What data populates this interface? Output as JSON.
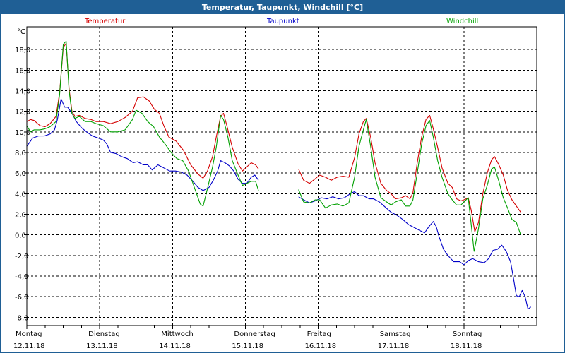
{
  "window": {
    "title": "Temperatur, Taupunkt, Windchill [°C]"
  },
  "chart_data": {
    "type": "line",
    "title": "Temperatur, Taupunkt, Windchill [°C]",
    "ylabel": "°C",
    "ylim": [
      -8.8,
      20.2
    ],
    "yticks": [
      "18,0",
      "16,0",
      "14,0",
      "12,0",
      "10,0",
      "8,0",
      "6,0",
      "4,0",
      "2,0",
      "0,0",
      "-2,0",
      "-4,0",
      "-6,0",
      "-8,0"
    ],
    "ytick_values": [
      18,
      16,
      14,
      12,
      10,
      8,
      6,
      4,
      2,
      0,
      -2,
      -4,
      -6,
      -8
    ],
    "xlim": [
      0,
      7.0
    ],
    "x_unit": "days since Montag 12.11.18 00:00",
    "x_day_labels": [
      {
        "day": "Montag",
        "date": "12.11.18"
      },
      {
        "day": "Dienstag",
        "date": "13.11.18"
      },
      {
        "day": "Mittwoch",
        "date": "14.11.18"
      },
      {
        "day": "Donnerstag",
        "date": "15.11.18"
      },
      {
        "day": "Freitag",
        "date": "16.11.18"
      },
      {
        "day": "Samstag",
        "date": "17.11.18"
      },
      {
        "day": "Sonntag",
        "date": "18.11.18"
      }
    ],
    "grid": true,
    "legend_placement": "top",
    "series": [
      {
        "name": "Temperatur",
        "color": "#d40000",
        "points": [
          [
            0.0,
            11.0
          ],
          [
            0.05,
            11.2
          ],
          [
            0.1,
            11.1
          ],
          [
            0.18,
            10.6
          ],
          [
            0.25,
            10.5
          ],
          [
            0.32,
            10.8
          ],
          [
            0.4,
            11.5
          ],
          [
            0.45,
            13.8
          ],
          [
            0.5,
            18.2
          ],
          [
            0.54,
            18.6
          ],
          [
            0.58,
            14.2
          ],
          [
            0.62,
            12.0
          ],
          [
            0.66,
            11.5
          ],
          [
            0.72,
            11.6
          ],
          [
            0.8,
            11.3
          ],
          [
            0.88,
            11.2
          ],
          [
            0.95,
            11.0
          ],
          [
            1.05,
            11.0
          ],
          [
            1.15,
            10.8
          ],
          [
            1.25,
            11.0
          ],
          [
            1.35,
            11.4
          ],
          [
            1.45,
            12.0
          ],
          [
            1.52,
            13.3
          ],
          [
            1.6,
            13.4
          ],
          [
            1.68,
            13.0
          ],
          [
            1.75,
            12.2
          ],
          [
            1.82,
            11.8
          ],
          [
            1.88,
            10.6
          ],
          [
            1.95,
            9.5
          ],
          [
            2.05,
            9.1
          ],
          [
            2.15,
            8.2
          ],
          [
            2.25,
            6.8
          ],
          [
            2.35,
            5.9
          ],
          [
            2.42,
            5.5
          ],
          [
            2.48,
            6.2
          ],
          [
            2.55,
            7.6
          ],
          [
            2.6,
            9.5
          ],
          [
            2.66,
            11.5
          ],
          [
            2.7,
            11.8
          ],
          [
            2.75,
            10.5
          ],
          [
            2.82,
            8.5
          ],
          [
            2.9,
            6.9
          ],
          [
            2.96,
            6.2
          ],
          [
            3.02,
            6.6
          ],
          [
            3.08,
            7.0
          ],
          [
            3.14,
            6.8
          ],
          [
            3.18,
            6.4
          ],
          null,
          [
            3.73,
            6.4
          ],
          [
            3.8,
            5.3
          ],
          [
            3.88,
            5.0
          ],
          [
            3.95,
            5.4
          ],
          [
            4.02,
            5.8
          ],
          [
            4.1,
            5.6
          ],
          [
            4.18,
            5.3
          ],
          [
            4.26,
            5.6
          ],
          [
            4.34,
            5.7
          ],
          [
            4.42,
            5.6
          ],
          [
            4.5,
            7.5
          ],
          [
            4.56,
            9.8
          ],
          [
            4.62,
            11.0
          ],
          [
            4.66,
            11.3
          ],
          [
            4.72,
            9.5
          ],
          [
            4.78,
            7.0
          ],
          [
            4.86,
            5.0
          ],
          [
            4.94,
            4.3
          ],
          [
            5.0,
            4.0
          ],
          [
            5.06,
            3.5
          ],
          [
            5.14,
            3.6
          ],
          [
            5.2,
            3.8
          ],
          [
            5.26,
            3.5
          ],
          [
            5.3,
            4.1
          ],
          [
            5.36,
            7.0
          ],
          [
            5.42,
            9.5
          ],
          [
            5.48,
            11.2
          ],
          [
            5.53,
            11.6
          ],
          [
            5.58,
            10.3
          ],
          [
            5.64,
            8.5
          ],
          [
            5.7,
            6.5
          ],
          [
            5.78,
            5.0
          ],
          [
            5.84,
            4.6
          ],
          [
            5.9,
            3.5
          ],
          [
            5.96,
            3.3
          ],
          [
            6.0,
            3.4
          ],
          [
            6.06,
            3.6
          ],
          [
            6.1,
            2.4
          ],
          [
            6.15,
            0.3
          ],
          [
            6.2,
            1.2
          ],
          [
            6.26,
            4.0
          ],
          [
            6.32,
            6.0
          ],
          [
            6.38,
            7.3
          ],
          [
            6.42,
            7.6
          ],
          [
            6.48,
            6.8
          ],
          [
            6.54,
            5.8
          ],
          [
            6.6,
            4.3
          ],
          [
            6.66,
            3.4
          ],
          [
            6.72,
            2.8
          ],
          [
            6.78,
            2.2
          ]
        ]
      },
      {
        "name": "Taupunkt",
        "color": "#0000c8",
        "points": [
          [
            0.0,
            8.6
          ],
          [
            0.08,
            9.4
          ],
          [
            0.16,
            9.6
          ],
          [
            0.24,
            9.6
          ],
          [
            0.32,
            9.8
          ],
          [
            0.38,
            10.2
          ],
          [
            0.42,
            11.2
          ],
          [
            0.47,
            13.2
          ],
          [
            0.52,
            12.4
          ],
          [
            0.56,
            12.4
          ],
          [
            0.62,
            11.8
          ],
          [
            0.68,
            11.0
          ],
          [
            0.75,
            10.4
          ],
          [
            0.82,
            10.0
          ],
          [
            0.9,
            9.6
          ],
          [
            0.98,
            9.4
          ],
          [
            1.05,
            9.2
          ],
          [
            1.1,
            8.8
          ],
          [
            1.15,
            8.0
          ],
          [
            1.22,
            7.9
          ],
          [
            1.3,
            7.6
          ],
          [
            1.38,
            7.4
          ],
          [
            1.46,
            7.0
          ],
          [
            1.52,
            7.1
          ],
          [
            1.6,
            6.8
          ],
          [
            1.66,
            6.8
          ],
          [
            1.72,
            6.3
          ],
          [
            1.8,
            6.8
          ],
          [
            1.88,
            6.5
          ],
          [
            1.96,
            6.2
          ],
          [
            2.04,
            6.2
          ],
          [
            2.12,
            6.1
          ],
          [
            2.2,
            5.8
          ],
          [
            2.28,
            5.2
          ],
          [
            2.35,
            4.6
          ],
          [
            2.42,
            4.3
          ],
          [
            2.5,
            4.6
          ],
          [
            2.56,
            5.3
          ],
          [
            2.62,
            6.2
          ],
          [
            2.66,
            7.2
          ],
          [
            2.72,
            7.0
          ],
          [
            2.78,
            6.7
          ],
          [
            2.84,
            6.2
          ],
          [
            2.9,
            5.4
          ],
          [
            2.96,
            5.0
          ],
          [
            3.02,
            5.0
          ],
          [
            3.08,
            5.6
          ],
          [
            3.13,
            5.8
          ],
          [
            3.18,
            5.3
          ],
          null,
          [
            3.73,
            3.7
          ],
          [
            3.8,
            3.4
          ],
          [
            3.88,
            3.1
          ],
          [
            3.96,
            3.3
          ],
          [
            4.04,
            3.6
          ],
          [
            4.12,
            3.5
          ],
          [
            4.2,
            3.7
          ],
          [
            4.28,
            3.5
          ],
          [
            4.36,
            3.6
          ],
          [
            4.44,
            4.0
          ],
          [
            4.5,
            4.2
          ],
          [
            4.56,
            3.8
          ],
          [
            4.62,
            3.8
          ],
          [
            4.7,
            3.5
          ],
          [
            4.76,
            3.5
          ],
          [
            4.84,
            3.2
          ],
          [
            4.92,
            2.7
          ],
          [
            5.0,
            2.2
          ],
          [
            5.08,
            1.9
          ],
          [
            5.16,
            1.5
          ],
          [
            5.24,
            1.0
          ],
          [
            5.32,
            0.7
          ],
          [
            5.4,
            0.4
          ],
          [
            5.46,
            0.2
          ],
          [
            5.52,
            0.8
          ],
          [
            5.58,
            1.3
          ],
          [
            5.62,
            0.8
          ],
          [
            5.66,
            -0.2
          ],
          [
            5.72,
            -1.4
          ],
          [
            5.78,
            -2.0
          ],
          [
            5.86,
            -2.6
          ],
          [
            5.94,
            -2.6
          ],
          [
            6.0,
            -2.9
          ],
          [
            6.06,
            -2.5
          ],
          [
            6.12,
            -2.3
          ],
          [
            6.2,
            -2.6
          ],
          [
            6.28,
            -2.7
          ],
          [
            6.34,
            -2.3
          ],
          [
            6.4,
            -1.5
          ],
          [
            6.46,
            -1.4
          ],
          [
            6.52,
            -1.0
          ],
          [
            6.58,
            -1.6
          ],
          [
            6.64,
            -2.6
          ],
          [
            6.68,
            -4.2
          ],
          [
            6.72,
            -5.9
          ],
          [
            6.76,
            -6.0
          ],
          [
            6.8,
            -5.4
          ],
          [
            6.84,
            -6.0
          ],
          [
            6.88,
            -7.2
          ],
          [
            6.92,
            -7.0
          ]
        ]
      },
      {
        "name": "Windchill",
        "color": "#00a000",
        "points": [
          [
            0.0,
            10.6
          ],
          [
            0.05,
            10.0
          ],
          [
            0.1,
            10.2
          ],
          [
            0.18,
            10.2
          ],
          [
            0.25,
            10.3
          ],
          [
            0.32,
            10.5
          ],
          [
            0.4,
            11.0
          ],
          [
            0.45,
            13.6
          ],
          [
            0.5,
            18.5
          ],
          [
            0.54,
            18.8
          ],
          [
            0.58,
            14.0
          ],
          [
            0.62,
            11.8
          ],
          [
            0.66,
            11.3
          ],
          [
            0.72,
            11.5
          ],
          [
            0.8,
            11.0
          ],
          [
            0.88,
            11.0
          ],
          [
            0.95,
            10.8
          ],
          [
            1.05,
            10.6
          ],
          [
            1.15,
            10.0
          ],
          [
            1.25,
            10.0
          ],
          [
            1.35,
            10.2
          ],
          [
            1.45,
            11.2
          ],
          [
            1.5,
            12.1
          ],
          [
            1.58,
            11.8
          ],
          [
            1.66,
            11.0
          ],
          [
            1.74,
            10.5
          ],
          [
            1.82,
            9.5
          ],
          [
            1.9,
            8.8
          ],
          [
            1.98,
            8.0
          ],
          [
            2.06,
            7.4
          ],
          [
            2.14,
            7.2
          ],
          [
            2.22,
            6.2
          ],
          [
            2.3,
            4.6
          ],
          [
            2.38,
            3.0
          ],
          [
            2.42,
            2.8
          ],
          [
            2.48,
            4.5
          ],
          [
            2.55,
            6.6
          ],
          [
            2.6,
            8.5
          ],
          [
            2.66,
            11.6
          ],
          [
            2.7,
            11.2
          ],
          [
            2.76,
            9.5
          ],
          [
            2.82,
            7.2
          ],
          [
            2.9,
            5.8
          ],
          [
            2.96,
            4.8
          ],
          [
            3.02,
            5.0
          ],
          [
            3.08,
            5.2
          ],
          [
            3.14,
            5.2
          ],
          [
            3.18,
            4.3
          ],
          null,
          [
            3.73,
            4.4
          ],
          [
            3.8,
            3.2
          ],
          [
            3.88,
            3.1
          ],
          [
            3.96,
            3.4
          ],
          [
            4.02,
            3.4
          ],
          [
            4.1,
            2.6
          ],
          [
            4.18,
            2.9
          ],
          [
            4.26,
            3.0
          ],
          [
            4.34,
            2.8
          ],
          [
            4.42,
            3.1
          ],
          [
            4.5,
            5.6
          ],
          [
            4.56,
            8.6
          ],
          [
            4.62,
            10.2
          ],
          [
            4.66,
            11.2
          ],
          [
            4.72,
            8.6
          ],
          [
            4.78,
            5.6
          ],
          [
            4.86,
            3.6
          ],
          [
            4.94,
            3.2
          ],
          [
            5.0,
            2.9
          ],
          [
            5.06,
            3.2
          ],
          [
            5.14,
            3.4
          ],
          [
            5.2,
            2.8
          ],
          [
            5.26,
            2.8
          ],
          [
            5.3,
            3.4
          ],
          [
            5.36,
            6.0
          ],
          [
            5.42,
            8.8
          ],
          [
            5.48,
            10.6
          ],
          [
            5.53,
            11.1
          ],
          [
            5.58,
            9.5
          ],
          [
            5.64,
            7.2
          ],
          [
            5.7,
            5.6
          ],
          [
            5.78,
            4.0
          ],
          [
            5.84,
            3.4
          ],
          [
            5.9,
            2.9
          ],
          [
            5.96,
            2.9
          ],
          [
            6.0,
            3.2
          ],
          [
            6.06,
            3.6
          ],
          [
            6.1,
            1.0
          ],
          [
            6.14,
            -1.6
          ],
          [
            6.2,
            0.6
          ],
          [
            6.26,
            3.5
          ],
          [
            6.32,
            4.8
          ],
          [
            6.38,
            6.4
          ],
          [
            6.42,
            6.6
          ],
          [
            6.48,
            5.2
          ],
          [
            6.54,
            3.6
          ],
          [
            6.6,
            2.6
          ],
          [
            6.66,
            1.5
          ],
          [
            6.72,
            1.2
          ],
          [
            6.78,
            0.0
          ]
        ]
      }
    ]
  }
}
